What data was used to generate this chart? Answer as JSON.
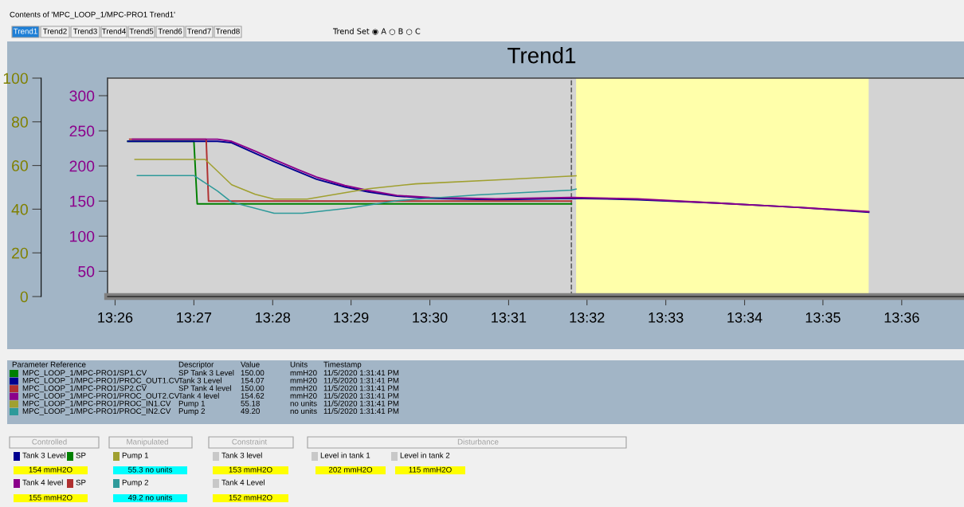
{
  "chart_data": {
    "type": "line",
    "title": "Trend1",
    "legend_title": "Parameter Reference",
    "legend": "bottom",
    "grid": false,
    "marker": "none",
    "line_style": "solid",
    "xlim": [
      13.4317,
      13.6132
    ],
    "xticks": [
      {
        "value": 13.4333,
        "label": "13:26"
      },
      {
        "value": 13.45,
        "label": "13:27"
      },
      {
        "value": 13.4667,
        "label": "13:28"
      },
      {
        "value": 13.4833,
        "label": "13:29"
      },
      {
        "value": 13.5,
        "label": "13:30"
      },
      {
        "value": 13.5167,
        "label": "13:31"
      },
      {
        "value": 13.5333,
        "label": "13:32"
      },
      {
        "value": 13.55,
        "label": "13:33"
      },
      {
        "value": 13.5667,
        "label": "13:34"
      },
      {
        "value": 13.5833,
        "label": "13:35"
      },
      {
        "value": 13.6,
        "label": "13:36"
      }
    ],
    "ylim": [
      14,
      325
    ],
    "yticks": [
      50,
      100,
      150,
      200,
      250,
      300
    ],
    "y2lim": [
      0,
      100
    ],
    "y2ticks": [
      0,
      20,
      40,
      60,
      80,
      100
    ],
    "ref_lines": [
      {
        "axis": "x",
        "value": 13.53,
        "color": "#606060",
        "line_style": "dashed"
      }
    ],
    "bands": [
      {
        "axis": "x",
        "from": 13.531,
        "to": 13.593,
        "color": "#ffffaa"
      }
    ],
    "series": [
      {
        "name": "MPC_LOOP_1/MPC-PRO1/SP1.CV",
        "color": "#008000",
        "x": [
          13.436,
          13.45,
          13.4507,
          13.53
        ],
        "values": [
          235,
          235,
          146,
          146
        ]
      },
      {
        "name": "MPC_LOOP_1/MPC-PRO1/PROC_OUT1.CV",
        "color": "#000090",
        "x": [
          13.436,
          13.455,
          13.458,
          13.463,
          13.467,
          13.472,
          13.476,
          13.482,
          13.487,
          13.493,
          13.5,
          13.514,
          13.53,
          13.544,
          13.561,
          13.578,
          13.593
        ],
        "values": [
          235,
          235,
          233,
          218,
          206,
          192,
          181,
          170,
          163,
          157,
          154,
          152,
          154,
          152,
          147,
          141,
          134
        ]
      },
      {
        "name": "MPC_LOOP_1/MPC-PRO1/SP2.CV",
        "color": "#b03030",
        "x": [
          13.4364,
          13.4526,
          13.4531,
          13.53
        ],
        "values": [
          238,
          238,
          150,
          150
        ]
      },
      {
        "name": "MPC_LOOP_1/MPC-PRO1/PROC_OUT2.CV",
        "color": "#8b008b",
        "x": [
          13.437,
          13.455,
          13.458,
          13.463,
          13.467,
          13.472,
          13.476,
          13.482,
          13.487,
          13.493,
          13.5,
          13.514,
          13.53,
          13.544,
          13.561,
          13.578,
          13.593
        ],
        "values": [
          238,
          238,
          235,
          221,
          209,
          195,
          184,
          172,
          165,
          158,
          155,
          153,
          155,
          153,
          147,
          141,
          135
        ]
      },
      {
        "name": "MPC_LOOP_1/MPC-PRO1/PROC_IN1.CV",
        "color": "#a0a030",
        "axis": "y2",
        "x": [
          13.4375,
          13.4524,
          13.458,
          13.463,
          13.467,
          13.474,
          13.48,
          13.487,
          13.497,
          13.514,
          13.531
        ],
        "values": [
          62.8,
          62.8,
          51.2,
          46.8,
          44.6,
          44.6,
          46.8,
          49.4,
          51.6,
          53.4,
          55.3
        ]
      },
      {
        "name": "MPC_LOOP_1/MPC-PRO1/PROC_IN2.CV",
        "color": "#2e9a9a",
        "axis": "y2",
        "x": [
          13.438,
          13.45,
          13.455,
          13.458,
          13.467,
          13.473,
          13.483,
          13.493,
          13.51,
          13.53,
          13.531
        ],
        "values": [
          55.4,
          55.4,
          48.3,
          43.2,
          38.1,
          38.1,
          40.5,
          43.9,
          46.5,
          48.7,
          49.2
        ]
      }
    ],
    "annotations": [
      "Contents of 'MPC_LOOP_1/MPC-PRO1 Trend1'",
      "Trend1",
      "Trend2",
      "Trend3",
      "Trend4",
      "Trend5",
      "Trend6",
      "Trend7",
      "Trend8",
      "Trend Set ◉ A ○ B ○ C",
      "Descriptor",
      "Value",
      "Units",
      "Timestamp",
      "SP Tank 3 Level",
      "150.00",
      "mmH20",
      "11/5/2020 1:31:41 PM",
      "Tank 3 Level",
      "154.07",
      "mmH20",
      "11/5/2020 1:31:41 PM",
      "SP Tank 4 level",
      "150.00",
      "mmH20",
      "11/5/2020 1:31:41 PM",
      "Tank 4 level",
      "154.62",
      "mmH20",
      "11/5/2020 1:31:41 PM",
      "Pump 1",
      "55.18",
      "no units",
      "11/5/2020 1:31:41 PM",
      "Pump 2",
      "49.20",
      "no units",
      "11/5/2020 1:31:41 PM",
      "Controlled",
      "Manipulated",
      "Constraint",
      "Disturbance",
      "Tank 3 Level",
      "SP",
      "154 mmH2O",
      "Tank 4 level",
      "SP",
      "155 mmH2O",
      "Pump 1",
      "55.3 no units",
      "Pump 2",
      "49.2 no units",
      "Tank 3 level",
      "153 mmH2O",
      "Tank 4 Level",
      "152 mmH2O",
      "Level in tank 1",
      "202 mmH2O",
      "Level in tank 2",
      "115 mmH2O"
    ]
  }
}
